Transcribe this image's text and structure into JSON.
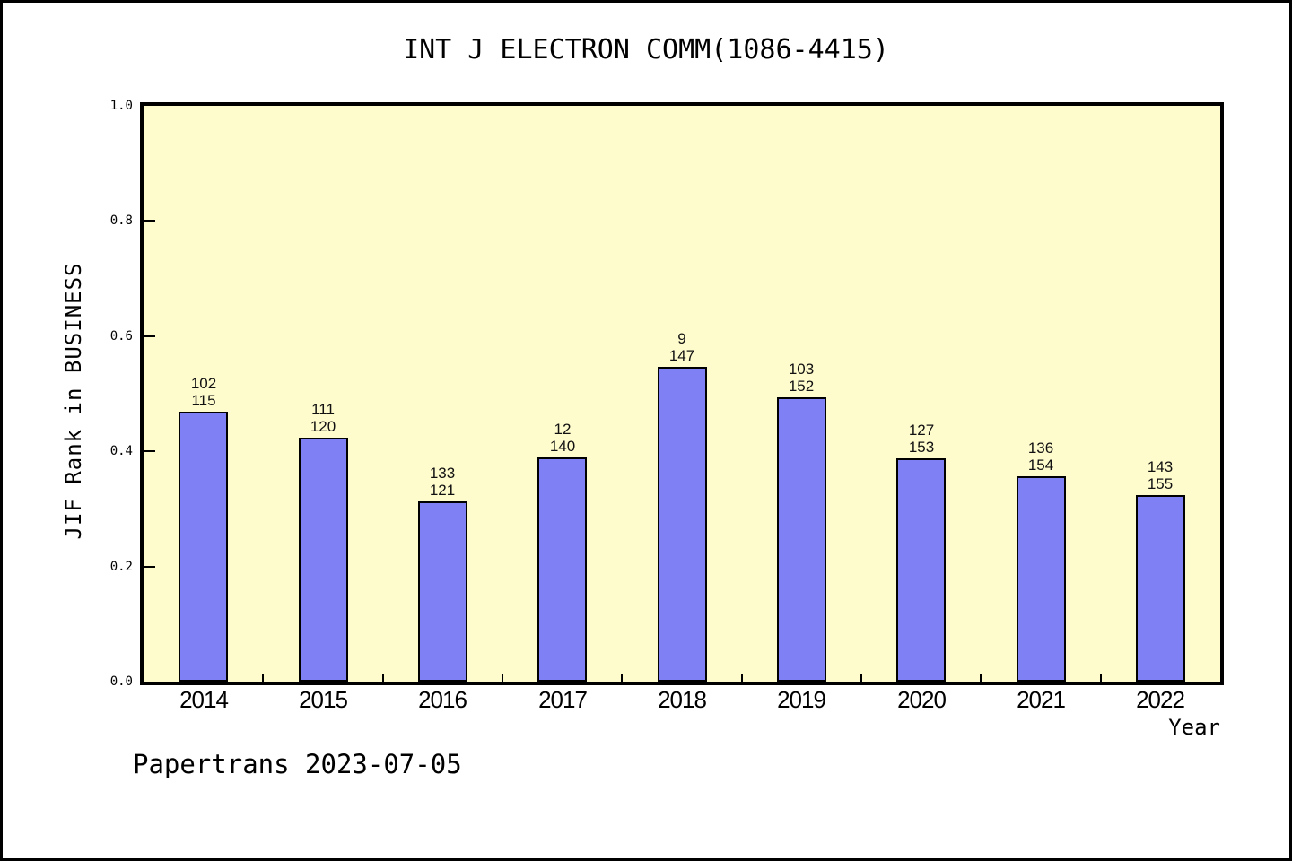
{
  "chart_data": {
    "type": "bar",
    "title": "INT J ELECTRON COMM(1086-4415)",
    "xlabel": "Year",
    "ylabel": "JIF Rank in BUSINESS",
    "categories": [
      "2014",
      "2015",
      "2016",
      "2017",
      "2018",
      "2019",
      "2020",
      "2021",
      "2022"
    ],
    "values": [
      0.469,
      0.424,
      0.313,
      0.39,
      0.547,
      0.494,
      0.388,
      0.357,
      0.324
    ],
    "bar_labels": [
      [
        "102",
        "115"
      ],
      [
        "111",
        "120"
      ],
      [
        "133",
        "121"
      ],
      [
        "12",
        "140"
      ],
      [
        "9",
        "147"
      ],
      [
        "103",
        "152"
      ],
      [
        "127",
        "153"
      ],
      [
        "136",
        "154"
      ],
      [
        "143",
        "155"
      ]
    ],
    "ylim": [
      0.0,
      1.0
    ],
    "yticks": [
      0.0,
      0.2,
      0.4,
      0.6,
      0.8,
      1.0
    ],
    "grid": false,
    "legend": null,
    "colors": {
      "bar": "#8080F5",
      "bar_border": "#000000",
      "plot_bg": "#FEFBCC",
      "axis": "#000000"
    }
  },
  "footer": {
    "text": "Papertrans 2023-07-05"
  }
}
